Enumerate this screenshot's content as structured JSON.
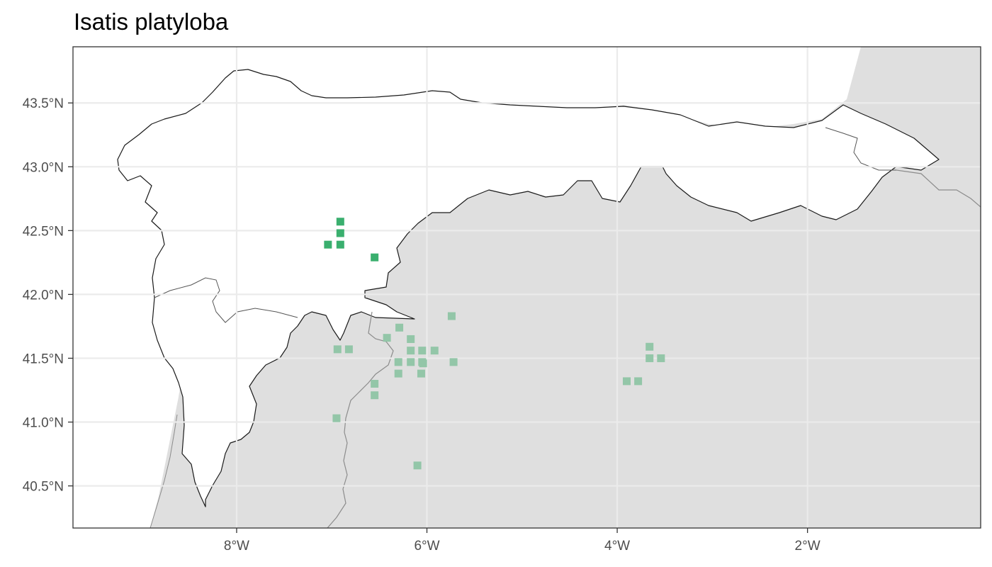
{
  "title": "Isatis platyloba",
  "axes": {
    "x_label": "",
    "y_label": "",
    "x_range_deg": [
      -9.72,
      -0.18
    ],
    "y_range_deg": [
      40.17,
      43.94
    ],
    "grid": true
  },
  "x_ticks": [
    {
      "value": -8,
      "label": "8°W"
    },
    {
      "value": -6,
      "label": "6°W"
    },
    {
      "value": -4,
      "label": "4°W"
    },
    {
      "value": -2,
      "label": "2°W"
    }
  ],
  "y_ticks": [
    {
      "value": 43.5,
      "label": "43.5°N"
    },
    {
      "value": 43.0,
      "label": "43.0°N"
    },
    {
      "value": 42.5,
      "label": "42.5°N"
    },
    {
      "value": 42.0,
      "label": "42.0°N"
    },
    {
      "value": 41.5,
      "label": "41.5°N"
    },
    {
      "value": 41.0,
      "label": "41.0°N"
    },
    {
      "value": 40.5,
      "label": "40.5°N"
    }
  ],
  "colors": {
    "land": "#dfdfdf",
    "study_region": "#ffffff",
    "gridline": "#ebebeb",
    "inside_records": "#3aaf6e",
    "outside_records": "#93c6a8",
    "border_line": "#8c8c8c"
  },
  "chart_data": {
    "type": "scatter",
    "title": "Isatis platyloba",
    "series": [
      {
        "color": "#3aaf6e",
        "points": [
          {
            "lon": -6.91,
            "lat": 42.57
          },
          {
            "lon": -6.91,
            "lat": 42.48
          },
          {
            "lon": -6.91,
            "lat": 42.39
          },
          {
            "lon": -7.04,
            "lat": 42.39
          },
          {
            "lon": -6.55,
            "lat": 42.29
          }
        ]
      },
      {
        "color": "#93c6a8",
        "points": [
          {
            "lon": -5.74,
            "lat": 41.83
          },
          {
            "lon": -6.29,
            "lat": 41.74
          },
          {
            "lon": -6.42,
            "lat": 41.66
          },
          {
            "lon": -6.17,
            "lat": 41.65
          },
          {
            "lon": -6.94,
            "lat": 41.57
          },
          {
            "lon": -6.82,
            "lat": 41.57
          },
          {
            "lon": -6.17,
            "lat": 41.56
          },
          {
            "lon": -6.05,
            "lat": 41.56
          },
          {
            "lon": -5.92,
            "lat": 41.56
          },
          {
            "lon": -6.3,
            "lat": 41.47
          },
          {
            "lon": -6.17,
            "lat": 41.47
          },
          {
            "lon": -6.05,
            "lat": 41.47
          },
          {
            "lon": -6.04,
            "lat": 41.46
          },
          {
            "lon": -5.72,
            "lat": 41.47
          },
          {
            "lon": -6.3,
            "lat": 41.38
          },
          {
            "lon": -6.06,
            "lat": 41.38
          },
          {
            "lon": -6.55,
            "lat": 41.3
          },
          {
            "lon": -6.55,
            "lat": 41.21
          },
          {
            "lon": -6.95,
            "lat": 41.03
          },
          {
            "lon": -6.1,
            "lat": 40.66
          },
          {
            "lon": -3.66,
            "lat": 41.59
          },
          {
            "lon": -3.66,
            "lat": 41.5
          },
          {
            "lon": -3.54,
            "lat": 41.5
          },
          {
            "lon": -3.9,
            "lat": 41.32
          },
          {
            "lon": -3.78,
            "lat": 41.32
          }
        ]
      }
    ]
  }
}
